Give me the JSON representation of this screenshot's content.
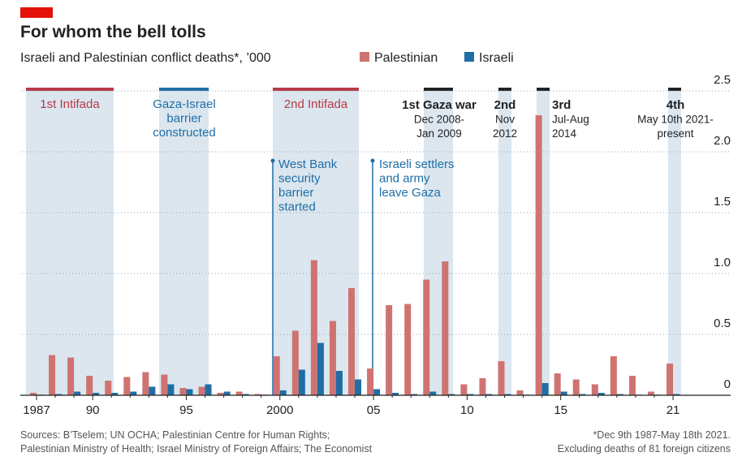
{
  "chart_data": {
    "type": "bar",
    "title": "For whom the bell tolls",
    "subtitle": "Israeli and Palestinian conflict deaths*, ’000",
    "categories": [
      "1987",
      null,
      null,
      "90",
      null,
      null,
      null,
      null,
      "95",
      null,
      null,
      null,
      null,
      "2000",
      null,
      null,
      null,
      null,
      "05",
      null,
      null,
      null,
      null,
      "10",
      null,
      null,
      null,
      null,
      "15",
      null,
      null,
      null,
      null,
      null,
      "21"
    ],
    "series": [
      {
        "name": "Palestinian",
        "color": "#cf7371",
        "values": [
          0.02,
          0.33,
          0.31,
          0.16,
          0.12,
          0.15,
          0.19,
          0.17,
          0.06,
          0.07,
          0.02,
          0.03,
          0.01,
          0.32,
          0.53,
          1.11,
          0.61,
          0.88,
          0.22,
          0.74,
          0.75,
          0.95,
          1.1,
          0.09,
          0.14,
          0.28,
          0.04,
          2.3,
          0.18,
          0.13,
          0.09,
          0.32,
          0.16,
          0.03,
          0.26
        ]
      },
      {
        "name": "Israeli",
        "color": "#1f6ea6",
        "values": [
          0.005,
          0.01,
          0.03,
          0.02,
          0.02,
          0.03,
          0.07,
          0.09,
          0.05,
          0.09,
          0.03,
          0.01,
          0.005,
          0.04,
          0.21,
          0.43,
          0.2,
          0.13,
          0.05,
          0.02,
          0.01,
          0.03,
          0.01,
          0.01,
          0.01,
          0.01,
          0.005,
          0.1,
          0.03,
          0.01,
          0.02,
          0.01,
          0.005,
          0.005,
          0.01
        ]
      }
    ],
    "ylim": [
      0,
      2.5
    ],
    "yticks": [
      0,
      0.5,
      {
        "value": 1,
        "label": "1.0"
      },
      1.5,
      {
        "value": 2,
        "label": "2.0"
      },
      2.5
    ],
    "grid": true,
    "legend": "top",
    "annotations": [
      {
        "lines": [
          "1st Intifada"
        ]
      },
      {
        "lines": [
          "Gaza-Israel",
          "barrier",
          "constructed"
        ]
      },
      {
        "lines": [
          "2nd Intifada"
        ]
      },
      {
        "lines": [
          "1st Gaza war",
          "Dec 2008-",
          "Jan 2009"
        ]
      },
      {
        "lines": [
          "2nd",
          "Nov",
          "2012"
        ]
      },
      {
        "lines": [
          "3rd",
          "Jul-Aug",
          "2014"
        ]
      },
      {
        "lines": [
          "4th",
          "May 10th 2021-",
          "present"
        ]
      },
      {
        "lines": [
          "West Bank",
          "security",
          "barrier",
          "started"
        ]
      },
      {
        "lines": [
          "Israeli settlers",
          "and army",
          "leave Gaza"
        ]
      }
    ],
    "sources": [
      "Sources: B’Tselem; UN OCHA; Palestinian Centre for Human Rights;",
      "Palestinian Ministry of Health; Israel Ministry of Foreign Affairs; The Economist"
    ],
    "footnote": [
      "*Dec 9th 1987-May 18th 2021.",
      "Excluding deaths of 81 foreign citizens"
    ]
  }
}
